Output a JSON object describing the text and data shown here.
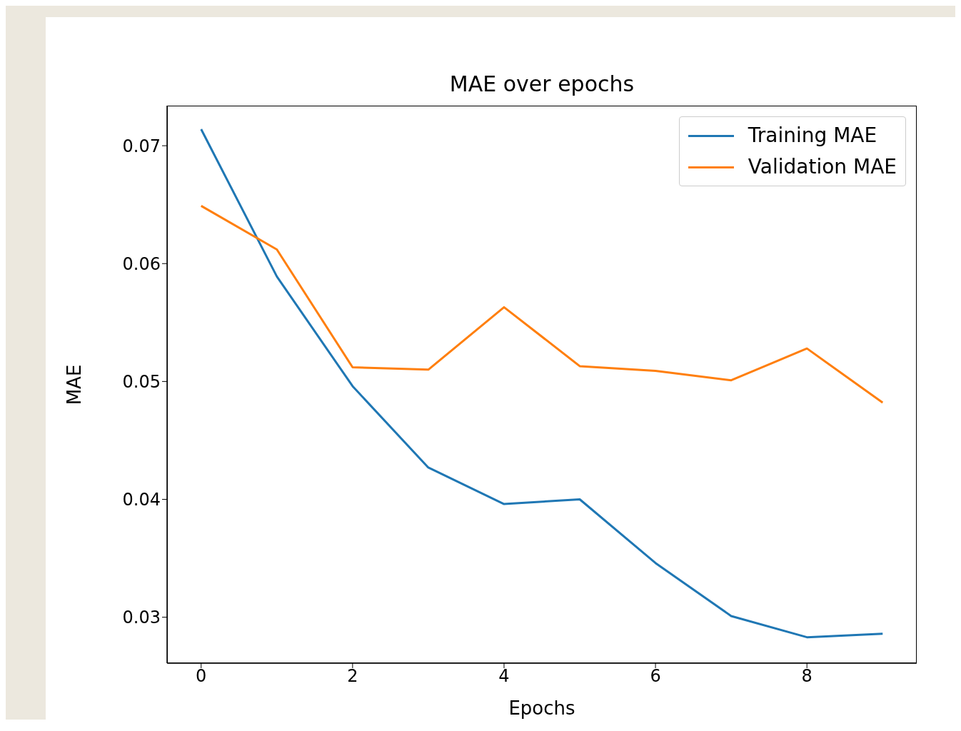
{
  "chart_data": {
    "type": "line",
    "title": "MAE over epochs",
    "xlabel": "Epochs",
    "ylabel": "MAE",
    "x": [
      0,
      1,
      2,
      3,
      4,
      5,
      6,
      7,
      8,
      9
    ],
    "series": [
      {
        "name": "Training MAE",
        "color": "#1f77b4",
        "values": [
          0.0714,
          0.0589,
          0.0496,
          0.0427,
          0.0396,
          0.04,
          0.0346,
          0.0301,
          0.0283,
          0.0286
        ]
      },
      {
        "name": "Validation MAE",
        "color": "#ff7f0e",
        "values": [
          0.0649,
          0.0612,
          0.0512,
          0.051,
          0.0563,
          0.0513,
          0.0509,
          0.0501,
          0.0528,
          0.0482
        ]
      }
    ],
    "xlim": [
      -0.45,
      9.45
    ],
    "xticks": [
      0,
      2,
      4,
      6,
      8
    ],
    "ylim": [
      0.0261,
      0.0734
    ],
    "yticks": [
      0.03,
      0.04,
      0.05,
      0.06,
      0.07
    ],
    "legend": "top right",
    "grid": false,
    "marker": "none",
    "line_style": "solid"
  }
}
